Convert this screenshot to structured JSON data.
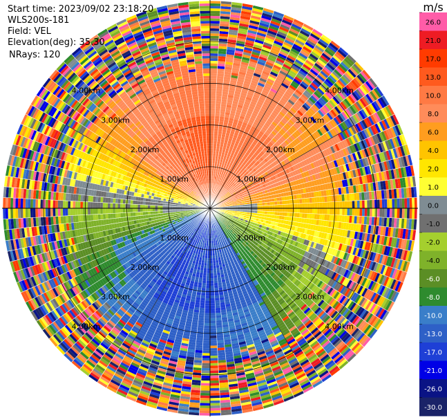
{
  "header": {
    "start_time": "Start time: 2023/09/02 23:18:20",
    "instrument": "WLS200s-181",
    "field": "Field: VEL",
    "elevation": "Elevation(deg): 35.30",
    "nrays": "NRays: 120"
  },
  "chart_data": {
    "type": "heatmap",
    "subtype": "polar-ppi",
    "title": "",
    "ring_labels": [
      "1.00km",
      "2.00km",
      "3.00km",
      "4.00km"
    ],
    "ring_distances_km": [
      1,
      2,
      3,
      4
    ],
    "max_range_km": 5,
    "rays": 120,
    "colorbar": {
      "unit": "m/s",
      "tick_labels": [
        "26.0",
        "21.0",
        "17.0",
        "13.0",
        "10.0",
        "8.0",
        "6.0",
        "4.0",
        "2.0",
        "1.0",
        "0.0",
        "-1.0",
        "-2.0",
        "-4.0",
        "-6.0",
        "-8.0",
        "-10.0",
        "-13.0",
        "-17.0",
        "-21.0",
        "-26.0",
        "-30.0"
      ],
      "colors": [
        "#ff5ca8",
        "#ee1c24",
        "#ff3b00",
        "#ff5a1e",
        "#ff7a44",
        "#ff8c5a",
        "#ff9d1f",
        "#ffc400",
        "#ffe600",
        "#ffff33",
        "#7f8c93",
        "#707070",
        "#a5cf2e",
        "#7fb22a",
        "#5b8e25",
        "#2e8b2e",
        "#3a7ec9",
        "#2e60c7",
        "#1e3fd6",
        "#0000e6",
        "#0a1385",
        "#1a2368"
      ]
    }
  }
}
